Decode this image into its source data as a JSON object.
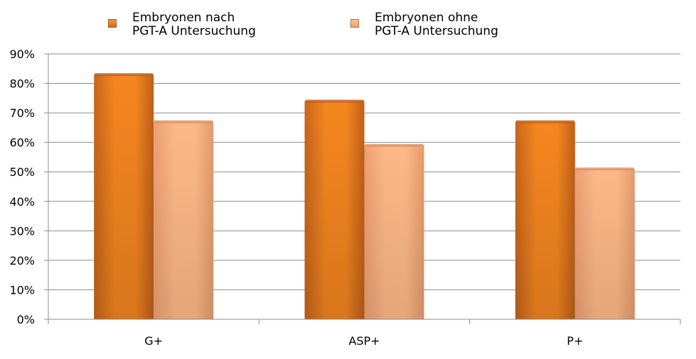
{
  "legend": {
    "item1": "Embryonen nach\nPGT-A Untersuchung",
    "item2": "Embryonen ohne\nPGT-A Untersuchung"
  },
  "colors": {
    "series1": "#f27d1f",
    "series1_dark": "#b85a12",
    "series2": "#fbb583",
    "series2_dark": "#d98c5e",
    "grid": "#8c8c8c"
  },
  "chart_data": {
    "type": "bar",
    "categories": [
      "G+",
      "ASP+",
      "P+"
    ],
    "series": [
      {
        "name": "Embryonen nach PGT-A Untersuchung",
        "values": [
          0.83,
          0.74,
          0.67
        ]
      },
      {
        "name": "Embryonen ohne PGT-A Untersuchung",
        "values": [
          0.67,
          0.59,
          0.51
        ]
      }
    ],
    "ylim": [
      0,
      0.9
    ],
    "yticks": [
      "0%",
      "10%",
      "20%",
      "30%",
      "40%",
      "50%",
      "60%",
      "70%",
      "80%",
      "90%"
    ],
    "grid": true,
    "legend_position": "top"
  }
}
